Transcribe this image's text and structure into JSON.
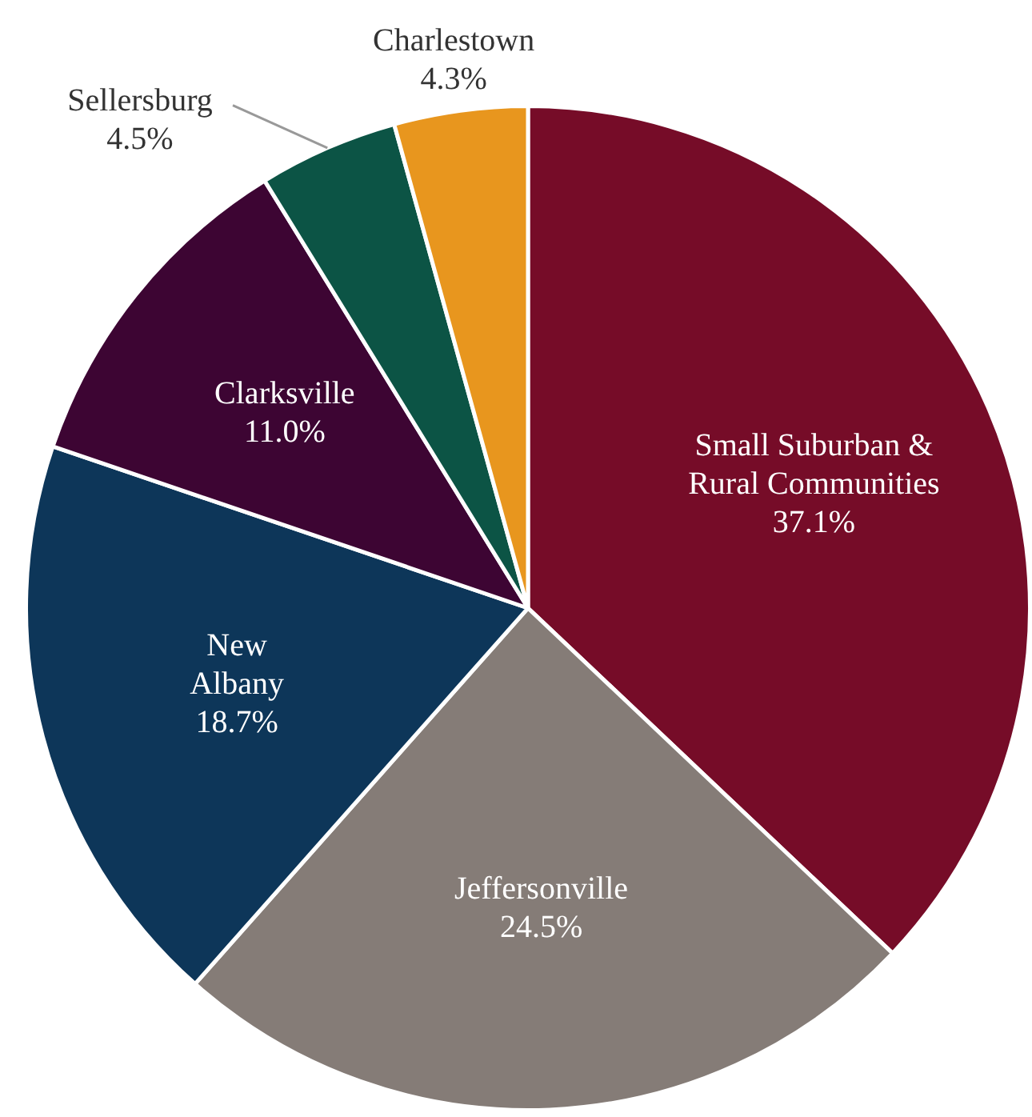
{
  "chart_data": {
    "type": "pie",
    "categories": [
      "Small Suburban & Rural Communities",
      "Jeffersonville",
      "New Albany",
      "Clarksville",
      "Sellersburg",
      "Charlestown"
    ],
    "values": [
      37.1,
      24.5,
      18.7,
      11.0,
      4.5,
      4.3
    ],
    "value_labels": [
      "37.1%",
      "24.5%",
      "18.7%",
      "11.0%",
      "4.5%",
      "4.3%"
    ],
    "colors": [
      "#760c28",
      "#857c77",
      "#0d3659",
      "#3d0533",
      "#0c5445",
      "#e8961e"
    ],
    "legend": false
  }
}
